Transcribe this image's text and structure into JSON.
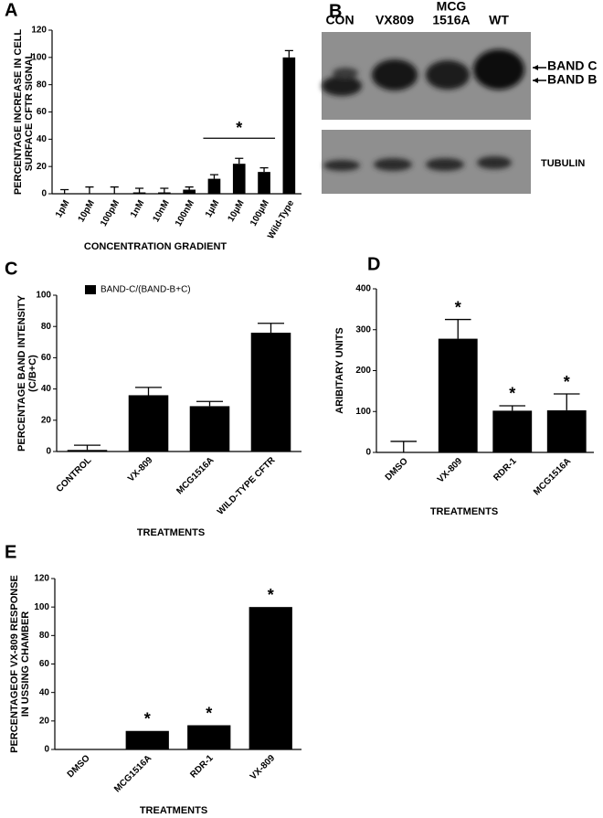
{
  "chart_data": [
    {
      "type": "bar",
      "panel_label": "A",
      "ylabel": [
        "PERCENTAGE  INCREASE IN CELL",
        "SURFACE CFTR SIGNAL"
      ],
      "xlabel": "CONCENTRATION GRADIENT",
      "categories": [
        "1pM",
        "10pM",
        "100pM",
        "1nM",
        "10nM",
        "100nM",
        "1µM",
        "10µM",
        "100µM",
        "Wild-Type"
      ],
      "series": [
        {
          "color": "#000000",
          "values": [
            0,
            0,
            0,
            1,
            1,
            3,
            11,
            22,
            16,
            100
          ],
          "errors": [
            3,
            5,
            5,
            3,
            3,
            2,
            3,
            4,
            3,
            5
          ]
        }
      ],
      "ylim": [
        0,
        120
      ],
      "yticks": [
        0,
        20,
        40,
        60,
        80,
        100,
        120
      ],
      "bracket": {
        "text": "*",
        "from": "1µM",
        "to": "100µM"
      }
    },
    {
      "type": "bar",
      "panel_label": "C",
      "ylabel": [
        "PERCENTAGE BAND INTENSITY",
        "(C/B+C)"
      ],
      "xlabel": "TREATMENTS",
      "categories": [
        "CONTROL",
        "VX-809",
        "MCG1516A",
        "WILD-TYPE CFTR"
      ],
      "series": [
        {
          "name": "BAND-C/(BAND-B+C)",
          "color": "#000000",
          "values": [
            1,
            36,
            29,
            76
          ],
          "errors": [
            3,
            5,
            3,
            6
          ]
        }
      ],
      "legend": "top-left",
      "ylim": [
        0,
        100
      ],
      "yticks": [
        0,
        20,
        40,
        60,
        80,
        100
      ]
    },
    {
      "type": "bar",
      "panel_label": "D",
      "ylabel": [
        "ARIBITARY UNITS"
      ],
      "xlabel": "TREATMENTS",
      "categories": [
        "DMSO",
        "VX-809",
        "RDR-1",
        "MCG1516A"
      ],
      "series": [
        {
          "color": "#000000",
          "values": [
            0,
            278,
            102,
            103
          ],
          "errors": [
            27,
            47,
            12,
            40
          ]
        }
      ],
      "ylim": [
        0,
        400
      ],
      "yticks": [
        0,
        100,
        200,
        300,
        400
      ],
      "stars": [
        {
          "text": "*",
          "at": "VX-809"
        },
        {
          "text": "*",
          "at": "RDR-1"
        },
        {
          "text": "*",
          "at": "MCG1516A"
        }
      ]
    },
    {
      "type": "bar",
      "panel_label": "E",
      "ylabel": [
        "PERCENTAGEOF VX-809 RESPONSE",
        "IN USSING CHAMBER"
      ],
      "xlabel": "TREATMENTS",
      "categories": [
        "DMSO",
        "MCG1516A",
        "RDR-1",
        "VX-809"
      ],
      "series": [
        {
          "color": "#000000",
          "values": [
            0,
            13,
            17,
            100
          ]
        }
      ],
      "ylim": [
        0,
        120
      ],
      "yticks": [
        0,
        20,
        40,
        60,
        80,
        100,
        120
      ],
      "stars": [
        {
          "text": "*",
          "at": "MCG1516A"
        },
        {
          "text": "*",
          "at": "RDR-1"
        },
        {
          "text": "*",
          "at": "VX-809"
        }
      ]
    }
  ],
  "blot": {
    "panel_label": "B",
    "lanes": [
      "CON",
      "VX809",
      [
        "MCG",
        "1516A"
      ],
      "WT"
    ],
    "band_labels": [
      "BAND C",
      "BAND B"
    ],
    "loading_control": "TUBULIN"
  }
}
